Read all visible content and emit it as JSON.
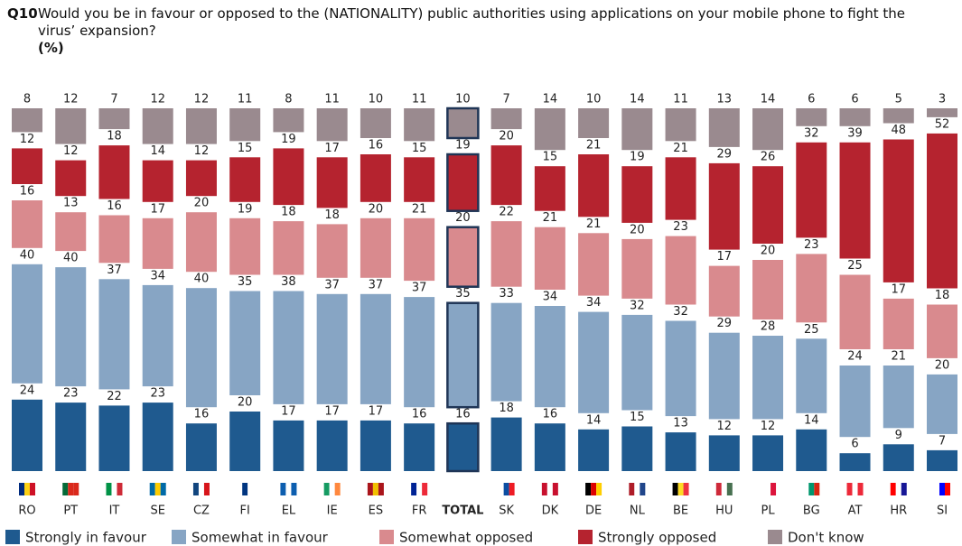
{
  "chart_data": {
    "type": "stacked_bar",
    "question_number": "Q10",
    "title": "Would you be in favour or opposed to the (NATIONALITY) public authorities using applications on your mobile phone to fight the virus’ expansion?",
    "subtitle": "(%)",
    "highlight": "TOTAL",
    "categories": [
      "RO",
      "PT",
      "IT",
      "SE",
      "CZ",
      "FI",
      "EL",
      "IE",
      "ES",
      "FR",
      "TOTAL",
      "SK",
      "DK",
      "DE",
      "NL",
      "BE",
      "HU",
      "PL",
      "BG",
      "AT",
      "HR",
      "SI"
    ],
    "series": [
      {
        "name": "Strongly in favour",
        "color": "#1f5a8f",
        "values": [
          24,
          23,
          22,
          23,
          16,
          20,
          17,
          17,
          17,
          16,
          16,
          18,
          16,
          14,
          15,
          13,
          12,
          12,
          14,
          6,
          9,
          7
        ]
      },
      {
        "name": "Somewhat in favour",
        "color": "#87a5c4",
        "values": [
          40,
          40,
          37,
          34,
          40,
          35,
          38,
          37,
          37,
          37,
          35,
          33,
          34,
          34,
          32,
          32,
          29,
          28,
          25,
          24,
          21,
          20
        ]
      },
      {
        "name": "Somewhat opposed",
        "color": "#d98a8e",
        "values": [
          16,
          13,
          16,
          17,
          20,
          19,
          18,
          18,
          20,
          21,
          20,
          22,
          21,
          21,
          20,
          23,
          17,
          20,
          23,
          25,
          17,
          18
        ]
      },
      {
        "name": "Strongly opposed",
        "color": "#b5232f",
        "values": [
          12,
          12,
          18,
          14,
          12,
          15,
          19,
          17,
          16,
          15,
          19,
          20,
          15,
          21,
          19,
          21,
          29,
          26,
          32,
          39,
          48,
          52
        ]
      },
      {
        "name": "Don't know",
        "color": "#9a8a8f",
        "values": [
          8,
          12,
          7,
          12,
          12,
          11,
          8,
          11,
          10,
          11,
          10,
          7,
          14,
          10,
          14,
          11,
          13,
          14,
          6,
          6,
          5,
          3
        ]
      }
    ]
  }
}
